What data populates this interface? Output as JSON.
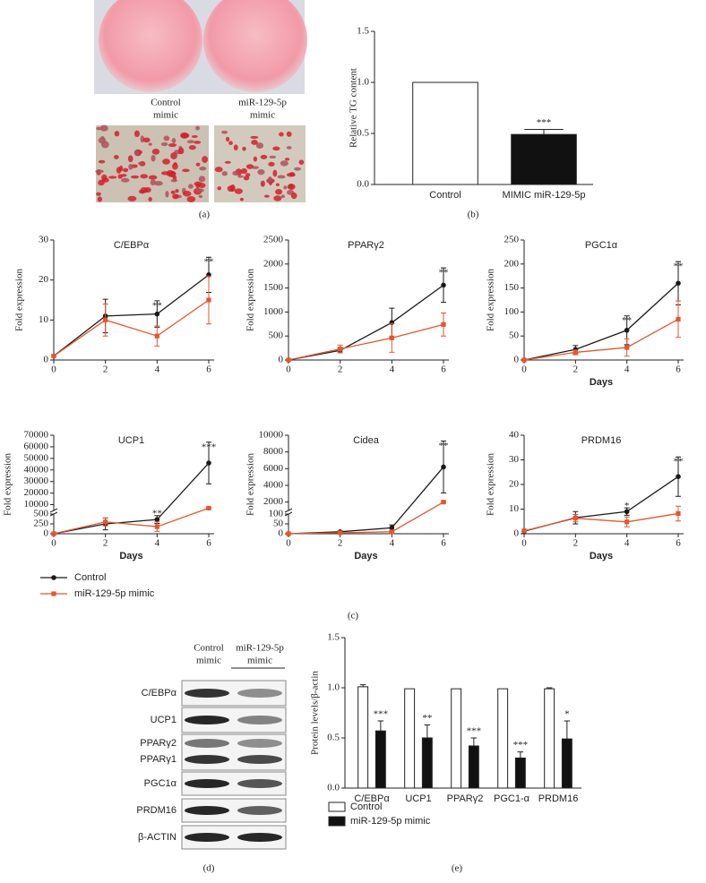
{
  "figure": {
    "panel_labels": [
      "(a)",
      "(b)",
      "(c)",
      "(d)",
      "(e)"
    ],
    "photo_labels": [
      [
        "Control",
        "mimic"
      ],
      [
        "miR-129-5p",
        "mimic"
      ]
    ],
    "blot": {
      "columns": [
        [
          "Control",
          "mimic"
        ],
        [
          "miR-129-5p",
          "mimic"
        ]
      ],
      "rows": [
        "C/EBPα",
        "UCP1",
        "PPARγ2",
        "PPARγ1",
        "PGC1α",
        "PRDM16",
        "β-ACTIN"
      ]
    }
  },
  "chart_data": [
    {
      "type": "bar",
      "ylabel": "Relative TG content",
      "categories": [
        "Control",
        "MIMIC miR-129-5p"
      ],
      "values": [
        1.0,
        0.49
      ],
      "errors": [
        0,
        0.05
      ],
      "colors": [
        "#ffffff",
        "#111111"
      ],
      "ylim": [
        0,
        1.5
      ],
      "yticks": [
        {
          "value": 0,
          "label": "0.0"
        },
        {
          "value": 0.5,
          "label": "0.5"
        },
        {
          "value": 1,
          "label": "1.0"
        },
        {
          "value": 1.5,
          "label": "1.5"
        }
      ],
      "annotations": [
        {
          "category": "MIMIC miR-129-5p",
          "text": "***"
        }
      ]
    },
    {
      "type": "line",
      "title": "C/EBPα",
      "ylabel": "Fold expression",
      "x": [
        0,
        2,
        4,
        6
      ],
      "xlim": [
        0,
        6
      ],
      "xticks": [
        0,
        2,
        4,
        6
      ],
      "ylim": [
        0,
        30
      ],
      "yticks": [
        0,
        10,
        20,
        30
      ],
      "series": [
        {
          "name": "Control",
          "color": "#1a1a1a",
          "marker": "circle",
          "values": [
            1,
            11,
            11.5,
            21.3
          ],
          "errors": [
            0,
            4.2,
            3.3,
            4.4
          ]
        },
        {
          "name": "miR-129-5p mimic",
          "color": "#e4572e",
          "marker": "square",
          "values": [
            1,
            10,
            6,
            15
          ],
          "errors": [
            0,
            4,
            2.5,
            6
          ]
        }
      ],
      "annotations": [
        {
          "x": 4,
          "text": "**"
        },
        {
          "x": 6,
          "text": "**"
        }
      ],
      "legend": "below"
    },
    {
      "type": "line",
      "title": "PPARγ2",
      "ylabel": "Fold expression",
      "x": [
        0,
        2,
        4,
        6
      ],
      "xlim": [
        0,
        6
      ],
      "xticks": [
        0,
        2,
        4,
        6
      ],
      "ylim": [
        0,
        2500
      ],
      "yticks": [
        0,
        500,
        1000,
        1500,
        2000,
        2500
      ],
      "series": [
        {
          "name": "Control",
          "color": "#1a1a1a",
          "marker": "circle",
          "values": [
            0,
            200,
            780,
            1560
          ],
          "errors": [
            0,
            50,
            300,
            360
          ]
        },
        {
          "name": "miR-129-5p mimic",
          "color": "#e4572e",
          "marker": "square",
          "values": [
            0,
            230,
            460,
            740
          ],
          "errors": [
            0,
            80,
            300,
            240
          ]
        }
      ],
      "annotations": [
        {
          "x": 6,
          "text": "**"
        }
      ]
    },
    {
      "type": "line",
      "title": "PGC1α",
      "ylabel": "Fold expression",
      "xlabel": "Days",
      "x": [
        0,
        2,
        4,
        6
      ],
      "xlim": [
        0,
        6
      ],
      "xticks": [
        0,
        2,
        4,
        6
      ],
      "ylim": [
        0,
        250
      ],
      "yticks": [
        0,
        50,
        100,
        150,
        200,
        250
      ],
      "series": [
        {
          "name": "Control",
          "color": "#1a1a1a",
          "marker": "circle",
          "values": [
            0,
            22,
            62,
            160
          ],
          "errors": [
            0,
            8,
            30,
            45
          ]
        },
        {
          "name": "miR-129-5p mimic",
          "color": "#e4572e",
          "marker": "square",
          "values": [
            0,
            16,
            26,
            85
          ],
          "errors": [
            0,
            5,
            18,
            38
          ]
        }
      ],
      "annotations": [
        {
          "x": 4,
          "text": "**"
        },
        {
          "x": 6,
          "text": "**"
        }
      ]
    },
    {
      "type": "line",
      "title": "UCP1",
      "ylabel": "Fold expression",
      "xlabel": "Days",
      "x": [
        0,
        2,
        4,
        6
      ],
      "xlim": [
        0,
        6
      ],
      "xticks": [
        0,
        2,
        4,
        6
      ],
      "ylim": [
        0,
        70000
      ],
      "ybreak": [
        500,
        5000
      ],
      "yticks": [
        0,
        250,
        500,
        10000,
        20000,
        30000,
        40000,
        50000,
        60000,
        70000
      ],
      "series": [
        {
          "name": "Control",
          "color": "#1a1a1a",
          "marker": "circle",
          "values": [
            0,
            250,
            360,
            46000
          ],
          "errors": [
            0,
            150,
            100,
            18000
          ]
        },
        {
          "name": "miR-129-5p mimic",
          "color": "#e4572e",
          "marker": "square",
          "values": [
            0,
            300,
            180,
            7000
          ],
          "errors": [
            0,
            100,
            120,
            500
          ]
        }
      ],
      "annotations": [
        {
          "x": 4,
          "text": "**"
        },
        {
          "x": 6,
          "text": "***"
        }
      ]
    },
    {
      "type": "line",
      "title": "Cidea",
      "ylabel": "Fold expression",
      "xlabel": "Days",
      "x": [
        0,
        2,
        4,
        6
      ],
      "xlim": [
        0,
        6
      ],
      "xticks": [
        0,
        2,
        4,
        6
      ],
      "ylim": [
        0,
        10000
      ],
      "ybreak": [
        100,
        1000
      ],
      "yticks": [
        0,
        50,
        100,
        2000,
        4000,
        6000,
        8000,
        10000
      ],
      "series": [
        {
          "name": "Control",
          "color": "#1a1a1a",
          "marker": "circle",
          "values": [
            0,
            10,
            30,
            6200
          ],
          "errors": [
            0,
            5,
            15,
            3100
          ]
        },
        {
          "name": "miR-129-5p mimic",
          "color": "#e4572e",
          "marker": "square",
          "values": [
            0,
            5,
            10,
            2000
          ],
          "errors": [
            0,
            3,
            5,
            100
          ]
        }
      ],
      "annotations": [
        {
          "x": 6,
          "text": "**"
        }
      ]
    },
    {
      "type": "line",
      "title": "PRDM16",
      "ylabel": "Fold expression",
      "xlabel": "Days",
      "x": [
        0,
        2,
        4,
        6
      ],
      "xlim": [
        0,
        6
      ],
      "xticks": [
        0,
        2,
        4,
        6
      ],
      "ylim": [
        0,
        40
      ],
      "yticks": [
        0,
        10,
        20,
        30,
        40
      ],
      "series": [
        {
          "name": "Control",
          "color": "#1a1a1a",
          "marker": "circle",
          "values": [
            1,
            6.5,
            9,
            23.2
          ],
          "errors": [
            0,
            2.5,
            1.5,
            8
          ]
        },
        {
          "name": "miR-129-5p mimic",
          "color": "#e4572e",
          "marker": "square",
          "values": [
            1.2,
            6.3,
            4.8,
            8.2
          ],
          "errors": [
            0,
            1.5,
            2,
            3
          ]
        }
      ],
      "annotations": [
        {
          "x": 4,
          "text": "*"
        },
        {
          "x": 6,
          "text": "**"
        }
      ]
    },
    {
      "type": "bar",
      "ylabel": "Protein levels/β-actin",
      "categories": [
        "C/EBPα",
        "UCP1",
        "PPARγ2",
        "PGC1-α",
        "PRDM16"
      ],
      "series": [
        {
          "name": "Control",
          "color": "#ffffff",
          "values": [
            1.01,
            0.99,
            0.99,
            0.99,
            0.99
          ],
          "errors": [
            0.02,
            0,
            0,
            0,
            0.01
          ]
        },
        {
          "name": "miR-129-5p mimic",
          "color": "#111111",
          "values": [
            0.57,
            0.5,
            0.42,
            0.3,
            0.49
          ],
          "errors": [
            0.1,
            0.13,
            0.08,
            0.06,
            0.18
          ]
        }
      ],
      "ylim": [
        0,
        1.5
      ],
      "yticks": [
        {
          "value": 0,
          "label": "0.0"
        },
        {
          "value": 0.5,
          "label": "0.5"
        },
        {
          "value": 1,
          "label": "1.0"
        },
        {
          "value": 1.5,
          "label": "1.5"
        }
      ],
      "annotations": [
        {
          "category": "C/EBPα",
          "text": "***"
        },
        {
          "category": "UCP1",
          "text": "**"
        },
        {
          "category": "PPARγ2",
          "text": "***"
        },
        {
          "category": "PGC1-α",
          "text": "***"
        },
        {
          "category": "PRDM16",
          "text": "*"
        }
      ],
      "legend": "below"
    }
  ]
}
